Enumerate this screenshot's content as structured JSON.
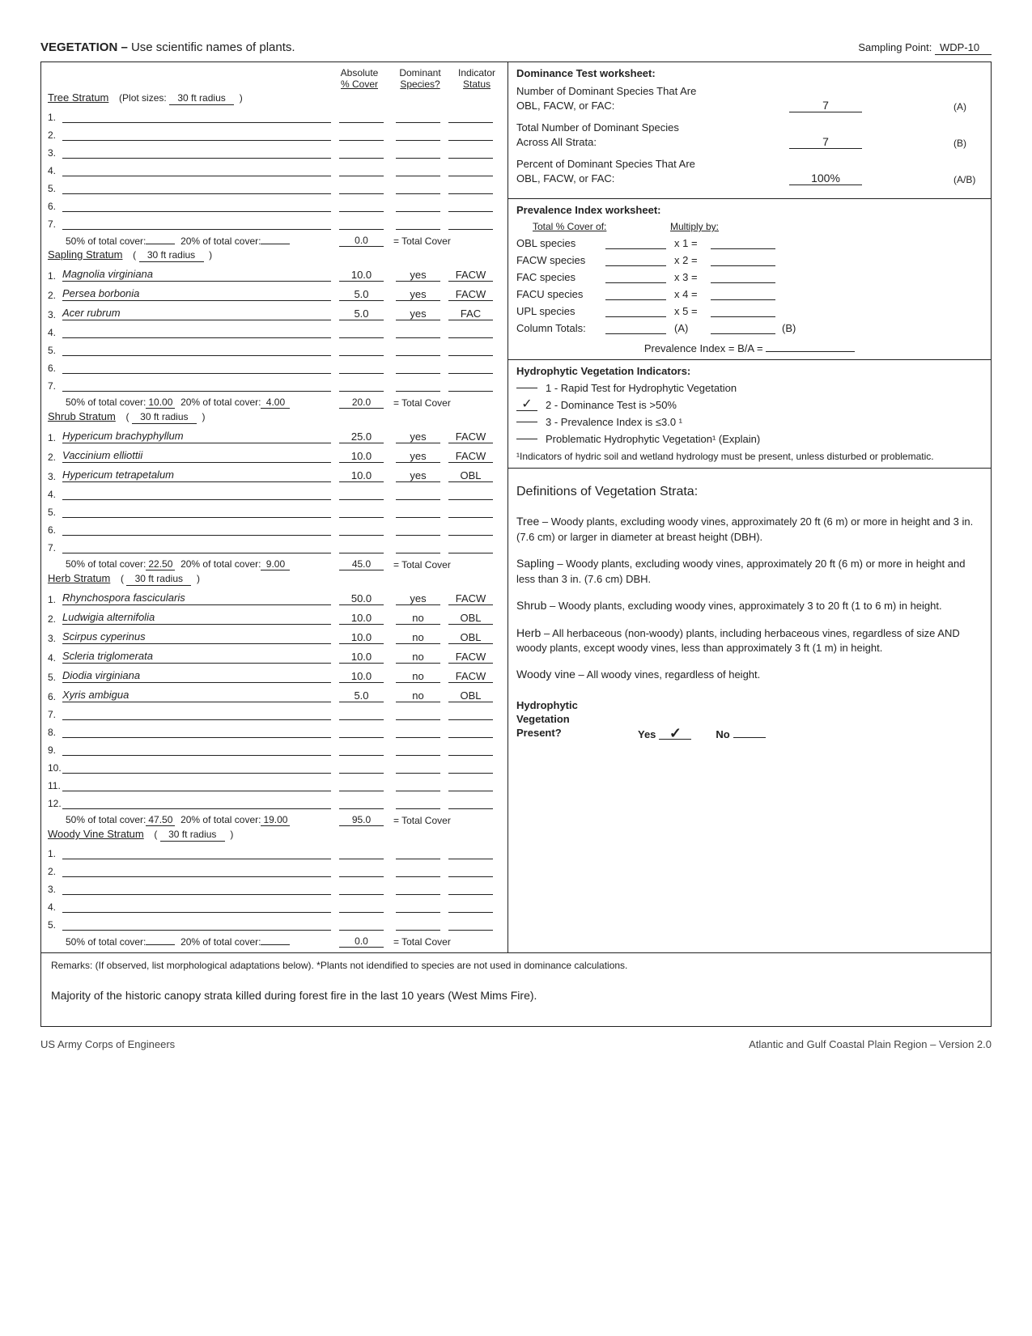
{
  "header": {
    "title_bold": "VEGETATION –",
    "title_rest": " Use scientific names of plants.",
    "sampling_point_label": "Sampling Point:",
    "sampling_point_value": "WDP-10"
  },
  "col_headers": {
    "absolute": "Absolute",
    "pct_cover": "% Cover",
    "dominant": "Dominant",
    "species_q": "Species?",
    "indicator": "Indicator",
    "status": "Status"
  },
  "strata": {
    "tree": {
      "name": "Tree Stratum",
      "plot_label": "(Plot sizes:",
      "plot_size": "30 ft radius",
      "rows": 7,
      "species": [],
      "pct50": "",
      "pct20": "",
      "total": "0.0"
    },
    "sapling": {
      "name": "Sapling Stratum",
      "plot_label": "(",
      "plot_size": "30 ft radius",
      "rows": 7,
      "species": [
        {
          "n": "Magnolia virginiana",
          "c": "10.0",
          "d": "yes",
          "i": "FACW"
        },
        {
          "n": "Persea borbonia",
          "c": "5.0",
          "d": "yes",
          "i": "FACW"
        },
        {
          "n": "Acer rubrum",
          "c": "5.0",
          "d": "yes",
          "i": "FAC"
        }
      ],
      "pct50": "10.00",
      "pct20": "4.00",
      "total": "20.0"
    },
    "shrub": {
      "name": "Shrub Stratum",
      "plot_label": "(",
      "plot_size": "30 ft radius",
      "rows": 7,
      "species": [
        {
          "n": "Hypericum brachyphyllum",
          "c": "25.0",
          "d": "yes",
          "i": "FACW"
        },
        {
          "n": "Vaccinium elliottii",
          "c": "10.0",
          "d": "yes",
          "i": "FACW"
        },
        {
          "n": "Hypericum tetrapetalum",
          "c": "10.0",
          "d": "yes",
          "i": "OBL"
        }
      ],
      "pct50": "22.50",
      "pct20": "9.00",
      "total": "45.0"
    },
    "herb": {
      "name": "Herb Stratum",
      "plot_label": "(",
      "plot_size": "30 ft radius",
      "rows": 12,
      "species": [
        {
          "n": "Rhynchospora fascicularis",
          "c": "50.0",
          "d": "yes",
          "i": "FACW"
        },
        {
          "n": "Ludwigia alternifolia",
          "c": "10.0",
          "d": "no",
          "i": "OBL"
        },
        {
          "n": "Scirpus cyperinus",
          "c": "10.0",
          "d": "no",
          "i": "OBL"
        },
        {
          "n": "Scleria triglomerata",
          "c": "10.0",
          "d": "no",
          "i": "FACW"
        },
        {
          "n": "Diodia virginiana",
          "c": "10.0",
          "d": "no",
          "i": "FACW"
        },
        {
          "n": "Xyris ambigua",
          "c": "5.0",
          "d": "no",
          "i": "OBL"
        }
      ],
      "pct50": "47.50",
      "pct20": "19.00",
      "total": "95.0"
    },
    "woody": {
      "name": "Woody Vine Stratum",
      "plot_label": "(",
      "plot_size": "30 ft radius",
      "rows": 5,
      "species": [],
      "pct50": "",
      "pct20": "",
      "total": "0.0"
    }
  },
  "labels": {
    "pct50": "50% of total cover:",
    "pct20": "20% of total cover:",
    "total_cover": "= Total Cover"
  },
  "dominance": {
    "title": "Dominance Test worksheet:",
    "rows": [
      {
        "label": "Number of Dominant Species That Are OBL, FACW, or FAC:",
        "val": "7",
        "suf": "(A)"
      },
      {
        "label": "Total Number of Dominant Species Across All Strata:",
        "val": "7",
        "suf": "(B)"
      },
      {
        "label": "Percent of Dominant Species That Are OBL, FACW, or FAC:",
        "val": "100%",
        "suf": "(A/B)"
      }
    ]
  },
  "prevalence": {
    "title": "Prevalence Index worksheet:",
    "h1": "Total % Cover of:",
    "h2": "Multiply by:",
    "rows": [
      {
        "l": "OBL species",
        "m": "x 1 ="
      },
      {
        "l": "FACW species",
        "m": "x 2 ="
      },
      {
        "l": "FAC species",
        "m": "x 3 ="
      },
      {
        "l": "FACU species",
        "m": "x 4 ="
      },
      {
        "l": "UPL species",
        "m": "x 5 ="
      }
    ],
    "totals_label": "Column Totals:",
    "totals_a": "(A)",
    "totals_b": "(B)",
    "index_label": "Prevalence Index  = B/A ="
  },
  "hvi": {
    "title": "Hydrophytic Vegetation Indicators:",
    "rows": [
      {
        "chk": "",
        "txt": "1 - Rapid Test for Hydrophytic Vegetation"
      },
      {
        "chk": "✓",
        "txt": "2 - Dominance Test is >50%"
      },
      {
        "chk": "",
        "txt": "3 - Prevalence Index is ≤3.0 ¹"
      },
      {
        "chk": "",
        "txt": "Problematic Hydrophytic Vegetation¹   (Explain)"
      }
    ],
    "footnote": "¹Indicators of hydric soil and wetland hydrology must be present, unless disturbed or problematic."
  },
  "defs": {
    "title": "Definitions of Vegetation Strata:",
    "items": [
      {
        "n": "Tree",
        "t": " – Woody plants, excluding woody vines, approximately 20 ft (6 m) or more in height and 3 in. (7.6 cm) or larger in diameter at breast height (DBH)."
      },
      {
        "n": "Sapling",
        "t": " – Woody plants, excluding woody vines, approximately 20 ft (6 m) or more in height and less than 3 in. (7.6 cm) DBH."
      },
      {
        "n": "Shrub",
        "t": " – Woody plants, excluding woody vines, approximately 3 to 20 ft (1 to 6 m) in height."
      },
      {
        "n": "Herb",
        "t": " – All herbaceous (non-woody) plants, including herbaceous vines, regardless of size AND woody plants, except woody vines, less than approximately 3 ft (1 m) in height."
      },
      {
        "n": "Woody vine",
        "t": " – All woody vines, regardless of height."
      }
    ]
  },
  "hydro_present": {
    "label": "Hydrophytic Vegetation Present?",
    "yes": "Yes",
    "yes_val": "✓",
    "no": "No",
    "no_val": ""
  },
  "remarks": {
    "header": "Remarks:  (If observed, list morphological adaptations below).  *Plants not idendified to species are not used in dominance calculations.",
    "body": "Majority of the historic canopy strata killed during forest fire in the last 10 years (West Mims Fire)."
  },
  "footer": {
    "left": "US Army Corps of Engineers",
    "right": "Atlantic and Gulf Coastal Plain Region – Version 2.0"
  }
}
